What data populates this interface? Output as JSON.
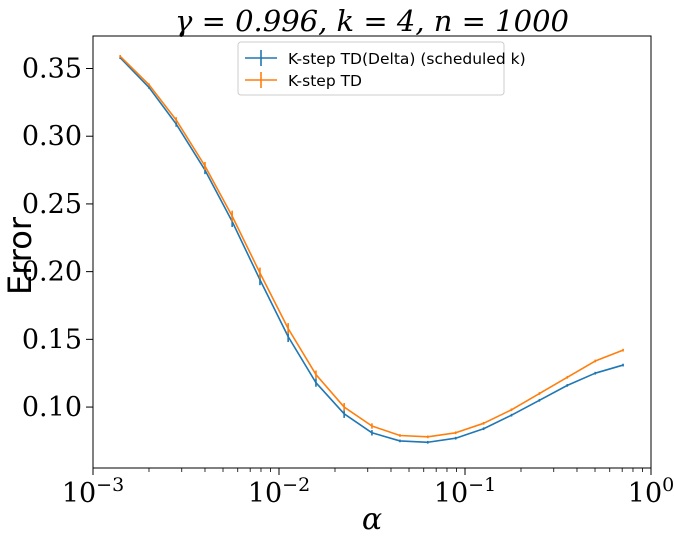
{
  "chart_data": {
    "type": "line",
    "title": "γ = 0.996, k = 4, n = 1000",
    "xlabel": "α",
    "ylabel": "Error",
    "x_scale": "log",
    "xlim": [
      0.001,
      1
    ],
    "ylim": [
      0.055,
      0.374
    ],
    "x_ticks": [
      {
        "value": 0.001,
        "base": "10",
        "exp": "−3"
      },
      {
        "value": 0.01,
        "base": "10",
        "exp": "−2"
      },
      {
        "value": 0.1,
        "base": "10",
        "exp": "−1"
      },
      {
        "value": 1,
        "base": "10",
        "exp": "0"
      }
    ],
    "y_ticks": [
      {
        "value": 0.1,
        "label": "0.10"
      },
      {
        "value": 0.15,
        "label": "0.15"
      },
      {
        "value": 0.2,
        "label": "0.20"
      },
      {
        "value": 0.25,
        "label": "0.25"
      },
      {
        "value": 0.3,
        "label": "0.30"
      },
      {
        "value": 0.35,
        "label": "0.35"
      }
    ],
    "legend_position": "top-center",
    "grid": false,
    "x": [
      0.0014,
      0.002,
      0.0028,
      0.004,
      0.0056,
      0.0079,
      0.0112,
      0.0158,
      0.0224,
      0.0316,
      0.0447,
      0.0631,
      0.0891,
      0.1259,
      0.1778,
      0.2512,
      0.3548,
      0.5012,
      0.7079
    ],
    "series": [
      {
        "name": "K-step TD(Delta) (scheduled k)",
        "color": "#1f77b4",
        "values": [
          0.358,
          0.336,
          0.309,
          0.275,
          0.237,
          0.194,
          0.152,
          0.118,
          0.095,
          0.081,
          0.075,
          0.074,
          0.077,
          0.084,
          0.094,
          0.105,
          0.116,
          0.125,
          0.131
        ],
        "errors": [
          0.001,
          0.001,
          0.002,
          0.003,
          0.004,
          0.004,
          0.004,
          0.003,
          0.003,
          0.002,
          0.001,
          0.001,
          0.001,
          0.001,
          0.001,
          0.001,
          0.001,
          0.001,
          0.001
        ]
      },
      {
        "name": "K-step TD",
        "color": "#ff7f0e",
        "values": [
          0.359,
          0.338,
          0.312,
          0.278,
          0.241,
          0.199,
          0.158,
          0.124,
          0.1,
          0.086,
          0.079,
          0.078,
          0.081,
          0.088,
          0.098,
          0.11,
          0.122,
          0.134,
          0.142
        ],
        "errors": [
          0.001,
          0.001,
          0.002,
          0.003,
          0.004,
          0.004,
          0.004,
          0.003,
          0.003,
          0.002,
          0.001,
          0.001,
          0.001,
          0.001,
          0.001,
          0.001,
          0.001,
          0.001,
          0.001
        ]
      }
    ]
  }
}
